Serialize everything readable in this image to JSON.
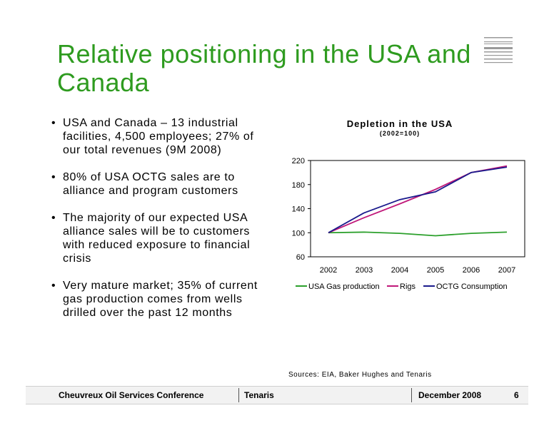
{
  "slide": {
    "title": "Relative positioning in the USA and Canada",
    "bullets": [
      "USA and Canada – 13 industrial facilities, 4,500 employees; 27% of our total revenues (9M 2008)",
      "80% of USA OCTG sales are to alliance and program customers",
      "The majority of our expected USA alliance sales will be to customers with reduced exposure to financial crisis",
      "Very mature market; 35% of current gas production comes from wells drilled over the past 12 months"
    ],
    "sources": "Sources: EIA, Baker Hughes and Tenaris"
  },
  "footer": {
    "conference": "Cheuvreux Oil Services Conference",
    "company": "Tenaris",
    "date": "December 2008",
    "page": "6"
  },
  "chart_data": {
    "type": "line",
    "title": "Depletion in the USA",
    "subtitle": "(2002=100)",
    "x": [
      "2002",
      "2003",
      "2004",
      "2005",
      "2006",
      "2007"
    ],
    "ylim": [
      60,
      220
    ],
    "yticks": [
      60,
      100,
      140,
      180,
      220
    ],
    "grid": false,
    "legend_position": "bottom",
    "series": [
      {
        "name": "USA Gas production",
        "color": "#2ca02c",
        "values": [
          100,
          101,
          99,
          95,
          99,
          101
        ]
      },
      {
        "name": "Rigs",
        "color": "#c0187a",
        "values": [
          100,
          125,
          148,
          172,
          200,
          211
        ]
      },
      {
        "name": "OCTG Consumption",
        "color": "#1a1a8c",
        "values": [
          100,
          133,
          155,
          168,
          200,
          209
        ]
      }
    ]
  }
}
